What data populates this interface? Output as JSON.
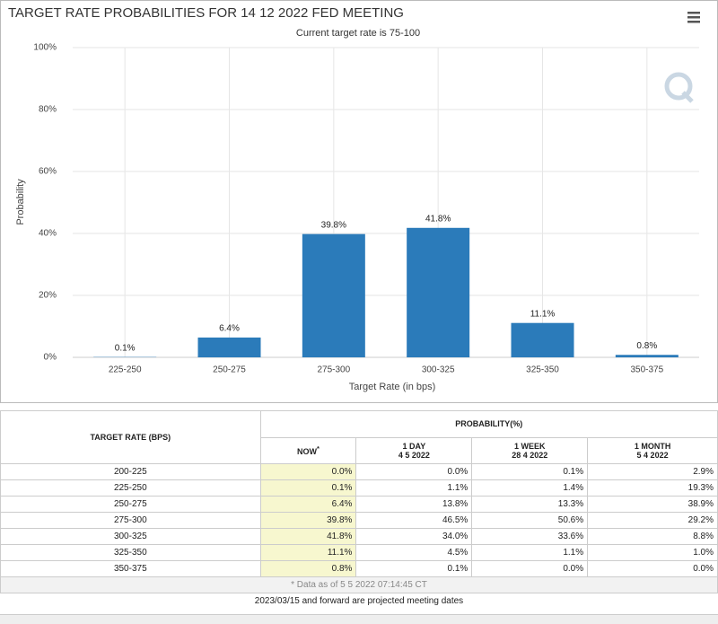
{
  "chart_data": {
    "type": "bar",
    "title": "TARGET RATE PROBABILITIES FOR 14 12 2022 FED MEETING",
    "subtitle": "Current target rate is 75-100",
    "categories": [
      "225-250",
      "250-275",
      "275-300",
      "300-325",
      "325-350",
      "350-375"
    ],
    "values": [
      0.1,
      6.4,
      39.8,
      41.8,
      11.1,
      0.8
    ],
    "value_labels": [
      "0.1%",
      "6.4%",
      "39.8%",
      "41.8%",
      "11.1%",
      "0.8%"
    ],
    "color": "#2b7bba",
    "ylim": [
      0,
      100
    ],
    "yticks": [
      {
        "value": 0,
        "label": "0%"
      },
      {
        "value": 20,
        "label": "20%"
      },
      {
        "value": 40,
        "label": "40%"
      },
      {
        "value": 60,
        "label": "60%"
      },
      {
        "value": 80,
        "label": "80%"
      },
      {
        "value": 100,
        "label": "100%"
      }
    ],
    "xlabel": "Target Rate (in bps)",
    "ylabel": "Probability",
    "grid": true
  },
  "table": {
    "rate_header": "TARGET RATE (BPS)",
    "group_header": "PROBABILITY(%)",
    "columns": [
      {
        "label": "NOW",
        "mark": "*"
      },
      {
        "label": "1 DAY",
        "date": "4 5 2022"
      },
      {
        "label": "1 WEEK",
        "date": "28 4 2022"
      },
      {
        "label": "1 MONTH",
        "date": "5 4 2022"
      }
    ],
    "rows": [
      [
        "200-225",
        "0.0%",
        "0.0%",
        "0.1%",
        "2.9%"
      ],
      [
        "225-250",
        "0.1%",
        "1.1%",
        "1.4%",
        "19.3%"
      ],
      [
        "250-275",
        "6.4%",
        "13.8%",
        "13.3%",
        "38.9%"
      ],
      [
        "275-300",
        "39.8%",
        "46.5%",
        "50.6%",
        "29.2%"
      ],
      [
        "300-325",
        "41.8%",
        "34.0%",
        "33.6%",
        "8.8%"
      ],
      [
        "325-350",
        "11.1%",
        "4.5%",
        "1.1%",
        "1.0%"
      ],
      [
        "350-375",
        "0.8%",
        "0.1%",
        "0.0%",
        "0.0%"
      ]
    ],
    "note": "* Data as of 5 5 2022 07:14:45 CT",
    "footer": "2023/03/15 and forward are projected meeting dates"
  }
}
